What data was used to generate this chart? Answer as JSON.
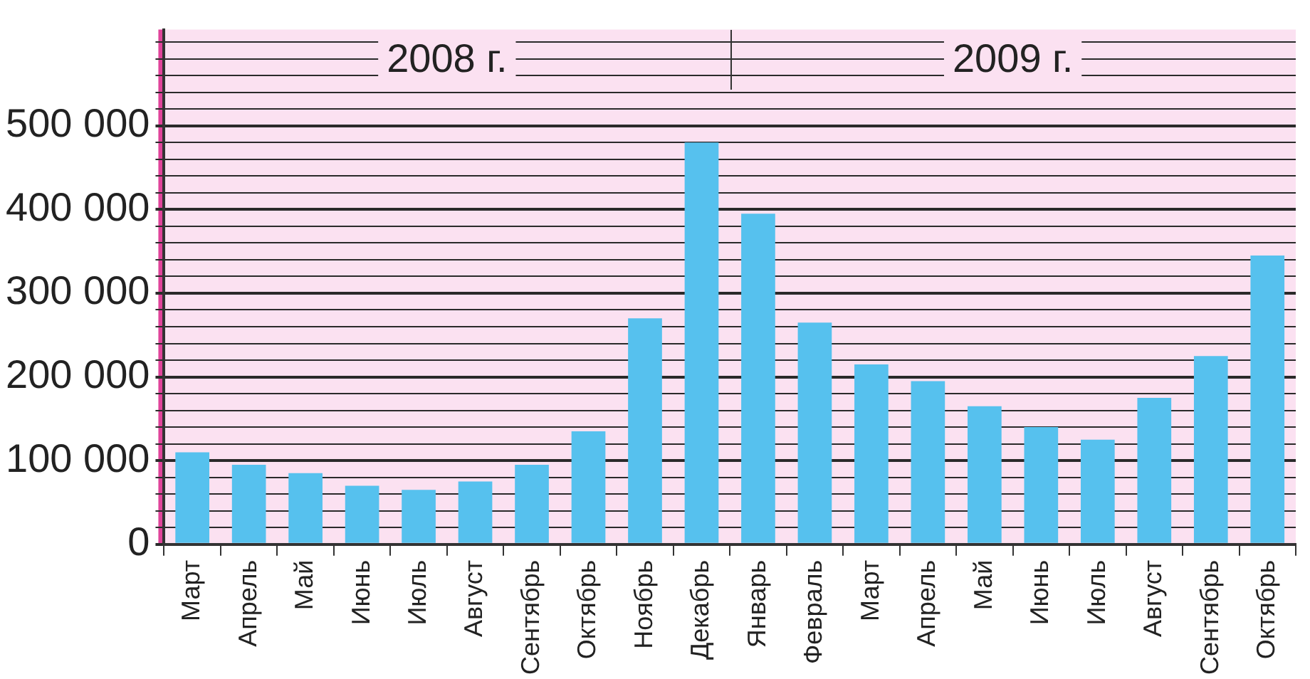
{
  "chart_data": {
    "type": "bar",
    "categories": [
      "Март",
      "Апрель",
      "Май",
      "Июнь",
      "Июль",
      "Август",
      "Сентябрь",
      "Октябрь",
      "Ноябрь",
      "Декабрь",
      "Январь",
      "Февраль",
      "Март",
      "Апрель",
      "Май",
      "Июнь",
      "Июль",
      "Август",
      "Сентябрь",
      "Октябрь"
    ],
    "values": [
      110000,
      95000,
      85000,
      70000,
      65000,
      75000,
      95000,
      135000,
      270000,
      480000,
      395000,
      265000,
      215000,
      195000,
      165000,
      140000,
      125000,
      175000,
      225000,
      345000
    ],
    "color": "#56c1ee",
    "ylim": [
      0,
      615000
    ],
    "yticks": [
      {
        "value": 0,
        "label": "0"
      },
      {
        "value": 20000,
        "label": null
      },
      {
        "value": 40000,
        "label": null
      },
      {
        "value": 60000,
        "label": null
      },
      {
        "value": 80000,
        "label": null
      },
      {
        "value": 100000,
        "label": "100 000"
      },
      {
        "value": 120000,
        "label": null
      },
      {
        "value": 140000,
        "label": null
      },
      {
        "value": 160000,
        "label": null
      },
      {
        "value": 180000,
        "label": null
      },
      {
        "value": 200000,
        "label": "200 000"
      },
      {
        "value": 220000,
        "label": null
      },
      {
        "value": 240000,
        "label": null
      },
      {
        "value": 260000,
        "label": null
      },
      {
        "value": 280000,
        "label": null
      },
      {
        "value": 300000,
        "label": "300 000"
      },
      {
        "value": 320000,
        "label": null
      },
      {
        "value": 340000,
        "label": null
      },
      {
        "value": 360000,
        "label": null
      },
      {
        "value": 380000,
        "label": null
      },
      {
        "value": 400000,
        "label": "400 000"
      },
      {
        "value": 420000,
        "label": null
      },
      {
        "value": 440000,
        "label": null
      },
      {
        "value": 460000,
        "label": null
      },
      {
        "value": 480000,
        "label": null
      },
      {
        "value": 500000,
        "label": "500 000"
      },
      {
        "value": 520000,
        "label": null
      },
      {
        "value": 540000,
        "label": null
      },
      {
        "value": 560000,
        "label": null
      },
      {
        "value": 580000,
        "label": null
      },
      {
        "value": 600000,
        "label": null
      }
    ],
    "grid": true,
    "legend": false,
    "annotations": [
      "2008 г.",
      "2009 г."
    ]
  }
}
